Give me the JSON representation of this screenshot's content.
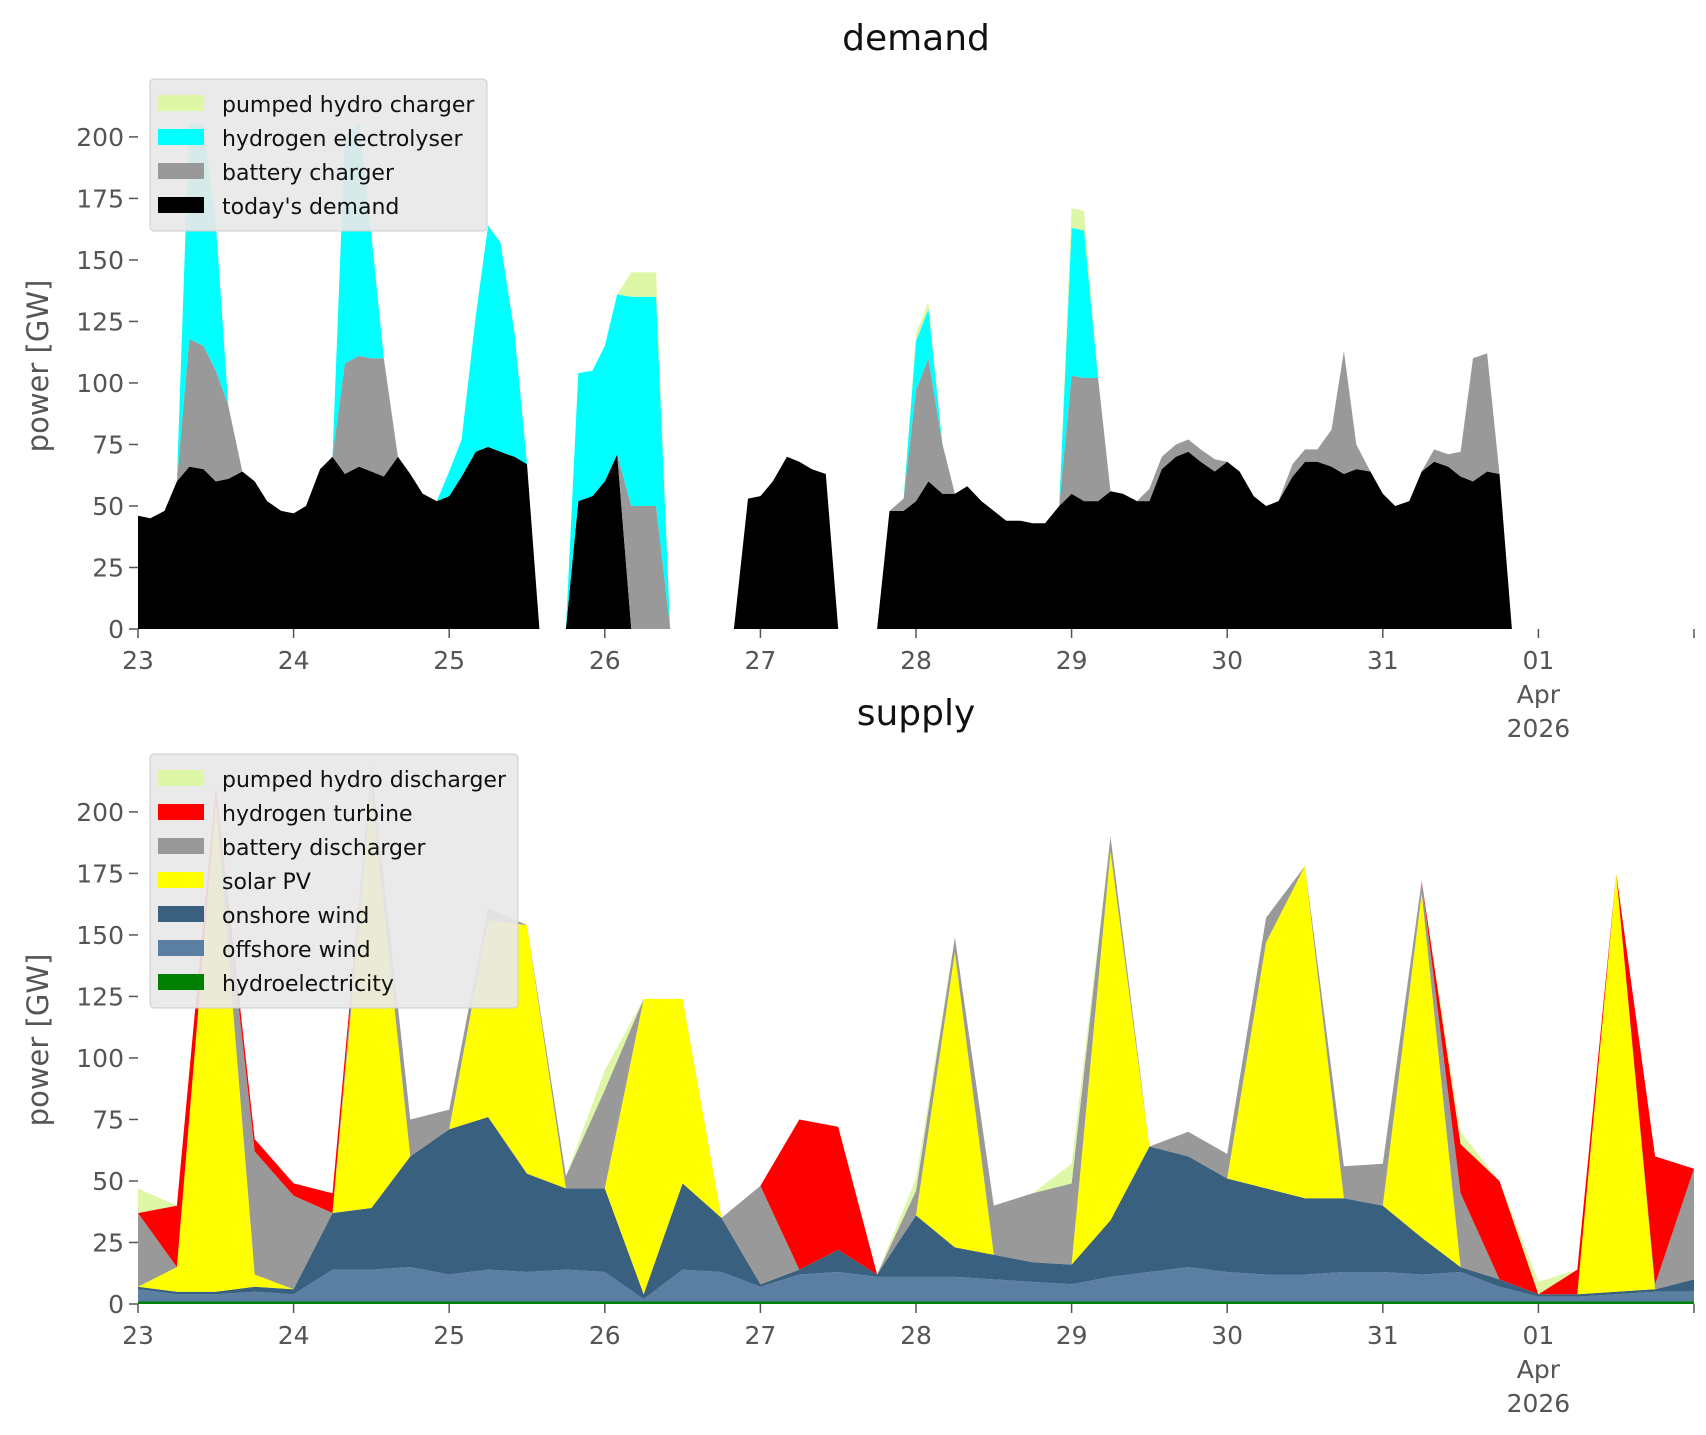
{
  "chart_data": [
    {
      "type": "area",
      "stacked": true,
      "title": "demand",
      "ylabel": "power [GW]",
      "xlabel": "",
      "ylim": [
        0,
        215
      ],
      "yticks": [
        0,
        25,
        50,
        75,
        100,
        125,
        150,
        175,
        200
      ],
      "xlim": [
        0,
        10
      ],
      "xticks": [
        0,
        1,
        2,
        3,
        4,
        5,
        6,
        7,
        8,
        9
      ],
      "xtick_labels": [
        "23",
        "24",
        "25",
        "26",
        "27",
        "28",
        "29",
        "30",
        "31",
        "01"
      ],
      "xtick_sublabels": [
        "Apr",
        "2026"
      ],
      "grid": false,
      "legend_position": "top-left",
      "x": [
        0,
        0.08,
        0.17,
        0.25,
        0.33,
        0.42,
        0.5,
        0.58,
        0.67,
        0.75,
        0.83,
        0.92,
        1,
        1.08,
        1.17,
        1.25,
        1.33,
        1.42,
        1.5,
        1.58,
        1.67,
        1.75,
        1.83,
        1.92,
        2,
        2.08,
        2.17,
        2.25,
        2.33,
        2.42,
        2.5,
        2.58,
        2.67,
        2.75,
        2.83,
        2.92,
        3,
        3.08,
        3.17,
        3.25,
        3.33,
        3.42,
        3.5,
        3.58,
        3.67,
        3.75,
        3.83,
        3.92,
        4,
        4.08,
        4.17,
        4.25,
        4.33,
        4.42,
        4.5,
        4.58,
        4.67,
        4.75,
        4.83,
        4.92,
        5,
        5.08,
        5.17,
        5.25,
        5.33,
        5.42,
        5.5,
        5.58,
        5.67,
        5.75,
        5.83,
        5.92,
        6,
        6.08,
        6.17,
        6.25,
        6.33,
        6.42,
        6.5,
        6.58,
        6.67,
        6.75,
        6.83,
        6.92,
        7,
        7.08,
        7.17,
        7.25,
        7.33,
        7.42,
        7.5,
        7.58,
        7.67,
        7.75,
        7.83,
        7.92,
        8,
        8.08,
        8.17,
        8.25,
        8.33,
        8.42,
        8.5,
        8.58,
        8.67,
        8.75,
        8.83,
        8.92,
        9,
        9.08,
        9.17,
        9.25,
        9.33,
        9.42,
        9.5,
        9.58,
        9.67,
        9.75,
        9.83,
        9.92,
        10
      ],
      "series": [
        {
          "name": "today's demand",
          "color": "#000000",
          "values": [
            46,
            45,
            48,
            60,
            66,
            65,
            60,
            61,
            64,
            60,
            52,
            48,
            47,
            50,
            65,
            70,
            63,
            66,
            64,
            62,
            70,
            63,
            55,
            52,
            54,
            62,
            72,
            74,
            72,
            70,
            67,
            0,
            0,
            0,
            52,
            54,
            60,
            71,
            0,
            0,
            0,
            0,
            0,
            0,
            0,
            0,
            0,
            53,
            54,
            60,
            70,
            68,
            65,
            63,
            0,
            0,
            0,
            0,
            48,
            48,
            52,
            60,
            55,
            55,
            58,
            52,
            48,
            44,
            44,
            43,
            43,
            50,
            55,
            52,
            52,
            56,
            55,
            52,
            52,
            65,
            70,
            72,
            68,
            64,
            68,
            64,
            54,
            50,
            52,
            62,
            68,
            68,
            66,
            63,
            65,
            64,
            55,
            50,
            52,
            64,
            68,
            66,
            62,
            60,
            64,
            63,
            0,
            0,
            0,
            0,
            0,
            0,
            0,
            0,
            0,
            0,
            0,
            0,
            0,
            0,
            0
          ]
        },
        {
          "name": "battery charger",
          "color": "#999999",
          "values": [
            0,
            0,
            0,
            0,
            52,
            50,
            45,
            30,
            0,
            0,
            0,
            0,
            0,
            0,
            0,
            0,
            45,
            45,
            46,
            48,
            0,
            0,
            0,
            0,
            0,
            0,
            0,
            0,
            0,
            0,
            0,
            0,
            0,
            0,
            0,
            0,
            0,
            0,
            50,
            50,
            50,
            0,
            0,
            0,
            0,
            0,
            0,
            0,
            0,
            0,
            0,
            0,
            0,
            0,
            0,
            0,
            0,
            0,
            0,
            5,
            45,
            50,
            20,
            0,
            0,
            0,
            0,
            0,
            0,
            0,
            0,
            0,
            48,
            50,
            50,
            0,
            0,
            0,
            5,
            5,
            5,
            5,
            5,
            5,
            0,
            0,
            0,
            0,
            0,
            5,
            5,
            5,
            15,
            50,
            10,
            0,
            0,
            0,
            0,
            0,
            5,
            5,
            10,
            50,
            48,
            0,
            0,
            0,
            0,
            0,
            0,
            0,
            0,
            0,
            0,
            0,
            0,
            0,
            0,
            0,
            0
          ]
        },
        {
          "name": "hydrogen electrolyser",
          "color": "#00ffff",
          "values": [
            0,
            0,
            0,
            0,
            88,
            90,
            60,
            0,
            0,
            0,
            0,
            0,
            0,
            0,
            0,
            0,
            92,
            95,
            50,
            0,
            0,
            0,
            0,
            0,
            10,
            15,
            55,
            90,
            85,
            50,
            0,
            0,
            0,
            0,
            52,
            51,
            55,
            65,
            85,
            85,
            85,
            0,
            0,
            0,
            0,
            0,
            0,
            0,
            0,
            0,
            0,
            0,
            0,
            0,
            0,
            0,
            0,
            0,
            0,
            0,
            20,
            20,
            0,
            0,
            0,
            0,
            0,
            0,
            0,
            0,
            0,
            0,
            60,
            60,
            0,
            0,
            0,
            0,
            0,
            0,
            0,
            0,
            0,
            0,
            0,
            0,
            0,
            0,
            0,
            0,
            0,
            0,
            0,
            0,
            0,
            0,
            0,
            0,
            0,
            0,
            0,
            0,
            0,
            0,
            0,
            0,
            0,
            0,
            0,
            0,
            0,
            0,
            0,
            0,
            0,
            0,
            0,
            0,
            0,
            0,
            0
          ]
        },
        {
          "name": "pumped hydro charger",
          "color": "#ddf7a6",
          "values": [
            0,
            0,
            0,
            0,
            0,
            0,
            0,
            0,
            0,
            0,
            0,
            0,
            0,
            0,
            0,
            0,
            0,
            0,
            0,
            0,
            0,
            0,
            0,
            0,
            0,
            0,
            0,
            0,
            0,
            0,
            0,
            0,
            0,
            0,
            0,
            0,
            0,
            0,
            10,
            10,
            10,
            0,
            0,
            0,
            0,
            0,
            0,
            0,
            0,
            0,
            0,
            0,
            0,
            0,
            0,
            0,
            0,
            0,
            0,
            0,
            3,
            3,
            0,
            0,
            0,
            0,
            0,
            0,
            0,
            0,
            0,
            0,
            8,
            8,
            0,
            0,
            0,
            0,
            0,
            0,
            0,
            0,
            0,
            0,
            0,
            0,
            0,
            0,
            0,
            0,
            0,
            0,
            0,
            0,
            0,
            0,
            0,
            0,
            0,
            0,
            0,
            0,
            0,
            0,
            0,
            0,
            0,
            0,
            0,
            0,
            0,
            0,
            0,
            0,
            0,
            0,
            0,
            0,
            0,
            0,
            0
          ]
        }
      ],
      "legend": [
        "pumped hydro charger",
        "hydrogen electrolyser",
        "battery charger",
        "today's demand"
      ]
    },
    {
      "type": "area",
      "stacked": true,
      "title": "supply",
      "ylabel": "power [GW]",
      "xlabel": "",
      "ylim": [
        0,
        215
      ],
      "yticks": [
        0,
        25,
        50,
        75,
        100,
        125,
        150,
        175,
        200
      ],
      "xlim": [
        0,
        10
      ],
      "xticks": [
        0,
        1,
        2,
        3,
        4,
        5,
        6,
        7,
        8,
        9
      ],
      "xtick_labels": [
        "23",
        "24",
        "25",
        "26",
        "27",
        "28",
        "29",
        "30",
        "31",
        "01"
      ],
      "xtick_sublabels": [
        "Apr",
        "2026"
      ],
      "grid": false,
      "legend_position": "top-left",
      "x": [
        0,
        0.25,
        0.5,
        0.75,
        1,
        1.25,
        1.5,
        1.75,
        2,
        2.25,
        2.5,
        2.75,
        3,
        3.25,
        3.5,
        3.75,
        4,
        4.25,
        4.5,
        4.75,
        5,
        5.25,
        5.5,
        5.75,
        6,
        6.25,
        6.5,
        6.75,
        7,
        7.25,
        7.5,
        7.75,
        8,
        8.25,
        8.5,
        8.75,
        9,
        9.25,
        9.5,
        9.75,
        10
      ],
      "series": [
        {
          "name": "hydroelectricity",
          "color": "#008000",
          "values": [
            1,
            1,
            1,
            1,
            1,
            1,
            1,
            1,
            1,
            1,
            1,
            1,
            1,
            1,
            1,
            1,
            1,
            1,
            1,
            1,
            1,
            1,
            1,
            1,
            1,
            1,
            1,
            1,
            1,
            1,
            1,
            1,
            1,
            1,
            1,
            1,
            1,
            1,
            1,
            1,
            1
          ]
        },
        {
          "name": "offshore wind",
          "color": "#5a7fa3",
          "values": [
            5,
            3,
            3,
            4,
            3,
            13,
            13,
            14,
            11,
            13,
            12,
            13,
            12,
            1,
            13,
            12,
            6,
            11,
            12,
            10,
            10,
            10,
            9,
            8,
            7,
            10,
            12,
            14,
            12,
            11,
            11,
            12,
            12,
            11,
            12,
            6,
            2,
            2,
            3,
            4,
            4
          ]
        },
        {
          "name": "onshore wind",
          "color": "#3a6080",
          "values": [
            1,
            1,
            1,
            2,
            2,
            23,
            25,
            45,
            59,
            62,
            40,
            33,
            34,
            2,
            35,
            22,
            1,
            2,
            9,
            1,
            25,
            12,
            10,
            8,
            8,
            23,
            51,
            45,
            38,
            35,
            31,
            30,
            27,
            15,
            2,
            3,
            1,
            1,
            1,
            1,
            5
          ]
        },
        {
          "name": "solar PV",
          "color": "#ffff00",
          "values": [
            0,
            10,
            200,
            5,
            0,
            0,
            170,
            0,
            0,
            80,
            101,
            0,
            0,
            120,
            75,
            0,
            0,
            0,
            0,
            0,
            0,
            120,
            0,
            0,
            0,
            150,
            0,
            0,
            0,
            100,
            135,
            0,
            0,
            140,
            0,
            0,
            0,
            0,
            170,
            0,
            0
          ]
        },
        {
          "name": "battery discharger",
          "color": "#999999",
          "values": [
            30,
            0,
            0,
            50,
            38,
            0,
            10,
            15,
            8,
            5,
            0,
            5,
            40,
            0,
            0,
            0,
            40,
            0,
            0,
            0,
            10,
            6,
            20,
            28,
            33,
            6,
            0,
            10,
            10,
            10,
            0,
            13,
            17,
            5,
            30,
            0,
            0,
            0,
            0,
            2,
            45
          ]
        },
        {
          "name": "hydrogen turbine",
          "color": "#ff0000",
          "values": [
            0,
            25,
            5,
            5,
            5,
            8,
            0,
            0,
            0,
            0,
            0,
            0,
            0,
            0,
            0,
            0,
            0,
            61,
            50,
            0,
            0,
            0,
            0,
            0,
            0,
            0,
            0,
            0,
            0,
            0,
            0,
            0,
            0,
            0,
            20,
            40,
            0,
            10,
            0,
            52,
            0
          ]
        },
        {
          "name": "pumped hydro discharger",
          "color": "#ddf7a6",
          "values": [
            10,
            0,
            0,
            0,
            0,
            0,
            0,
            0,
            0,
            0,
            0,
            0,
            8,
            0,
            0,
            0,
            0,
            0,
            0,
            0,
            5,
            0,
            0,
            0,
            8,
            0,
            0,
            0,
            0,
            0,
            0,
            0,
            0,
            0,
            5,
            0,
            5,
            0,
            0,
            0,
            0
          ]
        }
      ],
      "legend": [
        "pumped hydro discharger",
        "hydrogen turbine",
        "battery discharger",
        "solar PV",
        "onshore wind",
        "offshore wind",
        "hydroelectricity"
      ]
    }
  ]
}
